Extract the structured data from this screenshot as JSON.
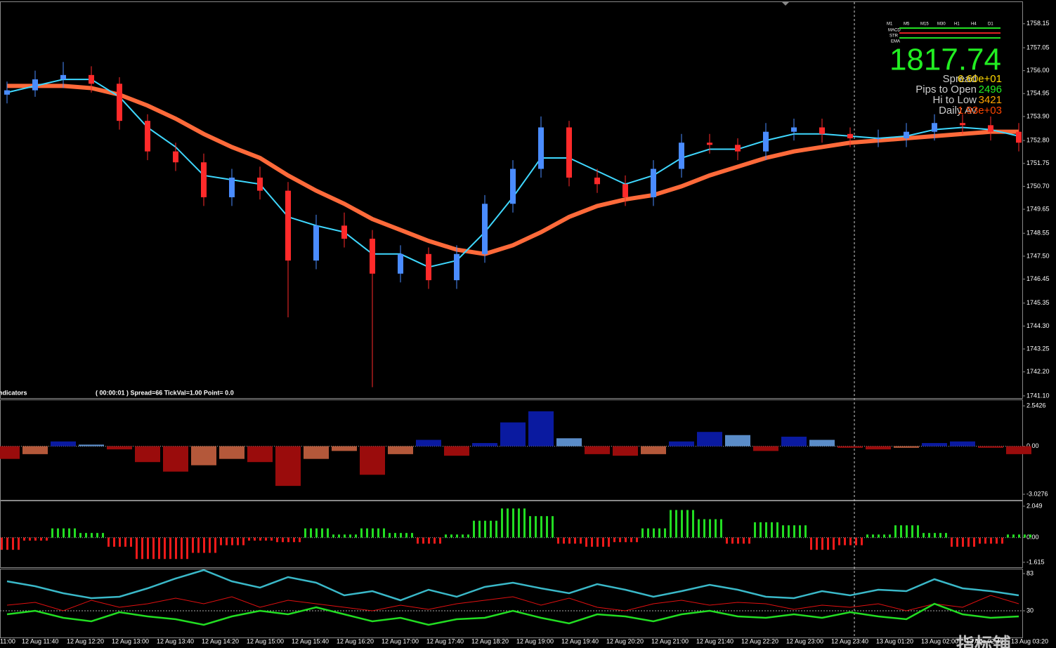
{
  "chart_data": [
    {
      "type": "candlestick",
      "up_color": "#4a8cff",
      "down_color": "#ff2a2a",
      "ylim": [
        1741.0,
        1759.14
      ],
      "yticks": [
        1758.15,
        1757.05,
        {
          "value": 1756,
          "label": "1756.00"
        },
        1754.95,
        {
          "value": 1753.9,
          "label": "1753.90"
        },
        {
          "value": 1752.8,
          "label": "1752.80"
        },
        1751.75,
        {
          "value": 1750.7,
          "label": "1750.70"
        },
        1749.65,
        1748.55,
        {
          "value": 1747.5,
          "label": "1747.50"
        },
        1746.45,
        1745.35,
        {
          "value": 1744.3,
          "label": "1744.30"
        },
        1743.25,
        {
          "value": 1742.2,
          "label": "1742.20"
        },
        {
          "value": 1741.1,
          "label": "1741.10"
        }
      ],
      "open": [
        1754.9,
        1755.1,
        1755.6,
        1755.8,
        1755.4,
        1753.7,
        1752.3,
        1751.8,
        1750.2,
        1751.1,
        1750.5,
        1747.3,
        1748.9,
        1748.3,
        1746.7,
        1747.6,
        1746.4,
        1747.6,
        1749.9,
        1751.5,
        1753.4,
        1751.1,
        1750.8,
        1750.2,
        1751.5,
        1752.7,
        1752.6,
        1752.3,
        1753.2,
        1753.4,
        1753.1,
        1752.9,
        1752.9,
        1753.2,
        1753.6,
        1753.5,
        1753.2
      ],
      "high": [
        1755.5,
        1756.0,
        1756.4,
        1756.2,
        1755.7,
        1754.0,
        1752.7,
        1752.2,
        1751.5,
        1751.6,
        1750.9,
        1749.4,
        1749.5,
        1748.7,
        1748.0,
        1747.9,
        1748.0,
        1750.3,
        1751.9,
        1753.9,
        1753.7,
        1751.5,
        1751.2,
        1751.9,
        1753.1,
        1753.1,
        1752.9,
        1753.6,
        1753.8,
        1753.8,
        1753.4,
        1753.3,
        1753.6,
        1754.0,
        1754.0,
        1753.9,
        1753.6
      ],
      "low": [
        1754.5,
        1754.8,
        1755.2,
        1755.0,
        1753.3,
        1751.9,
        1751.4,
        1749.8,
        1749.8,
        1750.1,
        1744.7,
        1746.9,
        1747.9,
        1741.5,
        1746.3,
        1746.0,
        1746.0,
        1747.2,
        1749.5,
        1751.1,
        1750.7,
        1750.4,
        1749.8,
        1749.8,
        1751.1,
        1752.2,
        1751.9,
        1751.9,
        1752.8,
        1752.7,
        1752.5,
        1752.5,
        1752.5,
        1752.8,
        1753.1,
        1752.8,
        1752.3
      ],
      "close": [
        1755.1,
        1755.6,
        1755.8,
        1755.4,
        1753.7,
        1752.3,
        1751.8,
        1750.2,
        1751.1,
        1750.5,
        1747.3,
        1748.9,
        1748.3,
        1746.7,
        1747.6,
        1746.4,
        1747.6,
        1749.9,
        1751.5,
        1753.4,
        1751.1,
        1750.8,
        1750.2,
        1751.5,
        1752.7,
        1752.6,
        1752.3,
        1753.2,
        1753.4,
        1753.1,
        1752.9,
        1752.9,
        1753.2,
        1753.6,
        1753.5,
        1753.2,
        1752.7
      ],
      "lines": [
        {
          "color": "#ff6a3a",
          "values": [
            1755.3,
            1755.3,
            1755.3,
            1755.2,
            1754.9,
            1754.4,
            1753.8,
            1753.1,
            1752.5,
            1752.0,
            1751.2,
            1750.5,
            1749.9,
            1749.2,
            1748.7,
            1748.2,
            1747.8,
            1747.6,
            1748.0,
            1748.6,
            1749.3,
            1749.8,
            1750.1,
            1750.3,
            1750.7,
            1751.2,
            1751.6,
            1752.0,
            1752.3,
            1752.5,
            1752.7,
            1752.8,
            1752.9,
            1753.0,
            1753.1,
            1753.2,
            1753.2
          ]
        },
        {
          "color": "#3fd8ff",
          "values": [
            1755.0,
            1755.3,
            1755.6,
            1755.6,
            1754.8,
            1753.4,
            1752.5,
            1751.2,
            1751.0,
            1750.8,
            1749.3,
            1748.9,
            1748.6,
            1747.6,
            1747.6,
            1747.0,
            1747.3,
            1748.6,
            1750.2,
            1752.0,
            1752.0,
            1751.4,
            1750.8,
            1751.2,
            1752.0,
            1752.4,
            1752.4,
            1752.8,
            1753.1,
            1753.1,
            1753.0,
            1752.9,
            1753.0,
            1753.3,
            1753.4,
            1753.3,
            1753.0
          ]
        }
      ]
    },
    {
      "type": "macd",
      "ylim": [
        -3.38,
        2.9
      ],
      "yticks": [
        2.5426,
        {
          "value": 0,
          "label": "0.00"
        },
        -3.0276
      ],
      "colors": [
        "#0a1aa0",
        "#5a8cc8",
        "#9a0c0c",
        "#b4583a"
      ],
      "values": [
        -0.8,
        -0.5,
        0.3,
        0.1,
        -0.2,
        -1.0,
        -1.6,
        -1.2,
        -0.8,
        -1.0,
        -2.5,
        -0.8,
        -0.3,
        -1.8,
        -0.5,
        0.4,
        -0.6,
        0.2,
        1.5,
        2.2,
        0.5,
        -0.5,
        -0.6,
        -0.5,
        0.3,
        0.9,
        0.7,
        -0.3,
        0.6,
        0.4,
        -0.1,
        -0.2,
        -0.1,
        0.2,
        0.3,
        -0.1,
        -0.5
      ]
    },
    {
      "type": "bar",
      "ylim": [
        -1.94,
        2.37
      ],
      "yticks": [
        2.049,
        {
          "value": 0,
          "label": "0.00"
        },
        -1.615
      ],
      "colors": [
        "#22dd22",
        "#ee1a1a"
      ],
      "values": [
        -0.8,
        -0.2,
        0.6,
        0.3,
        -0.6,
        -1.4,
        -1.4,
        -1.0,
        -0.5,
        -0.2,
        -0.3,
        0.6,
        0.2,
        0.6,
        0.3,
        -0.4,
        0.2,
        1.1,
        1.9,
        1.4,
        -0.4,
        -0.6,
        -0.3,
        0.6,
        1.8,
        1.2,
        -0.4,
        1.0,
        0.8,
        -0.8,
        -0.5,
        0.2,
        0.8,
        0.3,
        -0.6,
        -0.4,
        0.2
      ]
    },
    {
      "type": "line",
      "ylim": [
        -8,
        89
      ],
      "yticks": [
        83,
        30
      ],
      "series": [
        {
          "color": "#3ab8c8",
          "values": [
            72,
            65,
            55,
            48,
            50,
            62,
            76,
            88,
            72,
            63,
            78,
            70,
            52,
            58,
            45,
            60,
            50,
            64,
            70,
            62,
            55,
            68,
            60,
            50,
            58,
            67,
            60,
            50,
            48,
            58,
            52,
            60,
            58,
            75,
            62,
            58,
            52
          ]
        },
        {
          "color": "#e01010",
          "values": [
            38,
            42,
            30,
            45,
            35,
            40,
            48,
            40,
            50,
            35,
            45,
            40,
            35,
            30,
            38,
            32,
            40,
            45,
            50,
            38,
            48,
            35,
            30,
            40,
            45,
            38,
            42,
            40,
            32,
            38,
            35,
            40,
            30,
            40,
            35,
            52,
            40
          ]
        },
        {
          "color": "#22dd22",
          "values": [
            25,
            30,
            20,
            15,
            28,
            22,
            18,
            10,
            22,
            30,
            25,
            35,
            25,
            15,
            20,
            10,
            18,
            20,
            30,
            20,
            12,
            25,
            22,
            15,
            25,
            30,
            22,
            20,
            25,
            20,
            28,
            22,
            18,
            40,
            25,
            20,
            22
          ]
        }
      ]
    }
  ],
  "x_axis_labels": [
    "11:00",
    "12 Aug 11:40",
    "12 Aug 12:20",
    "12 Aug 13:00",
    "12 Aug 13:40",
    "12 Aug 14:20",
    "12 Aug 15:00",
    "12 Aug 15:40",
    "12 Aug 16:20",
    "12 Aug 17:00",
    "12 Aug 17:40",
    "12 Aug 18:20",
    "12 Aug 19:00",
    "12 Aug 19:40",
    "12 Aug 20:20",
    "12 Aug 21:00",
    "12 Aug 21:40",
    "12 Aug 22:20",
    "12 Aug 23:00",
    "12 Aug 23:40",
    "13 Aug 01:20",
    "13 Aug 02:00",
    "13 Aug 02:40",
    "13 Aug 03:20"
  ],
  "status": {
    "name": "ndicators",
    "text": "( 00:00:01 )  Spread=66  TickVal=1.00  Point= 0.0"
  },
  "info": {
    "price": "1817.74",
    "rows": [
      {
        "label": "Spread",
        "value": "6.60e+01"
      },
      {
        "label": "Pips to Open",
        "value": "2496"
      },
      {
        "label": "Hi to Low",
        "value": "3421"
      },
      {
        "label": "Daily Av",
        "value": "1.93e+03"
      }
    ]
  },
  "timeframes": {
    "columns": [
      "M1",
      "M5",
      "M15",
      "M30",
      "H1",
      "H4",
      "D1"
    ],
    "rows": [
      "MACD",
      "STR",
      "EMA"
    ]
  },
  "watermark": "指标铺"
}
